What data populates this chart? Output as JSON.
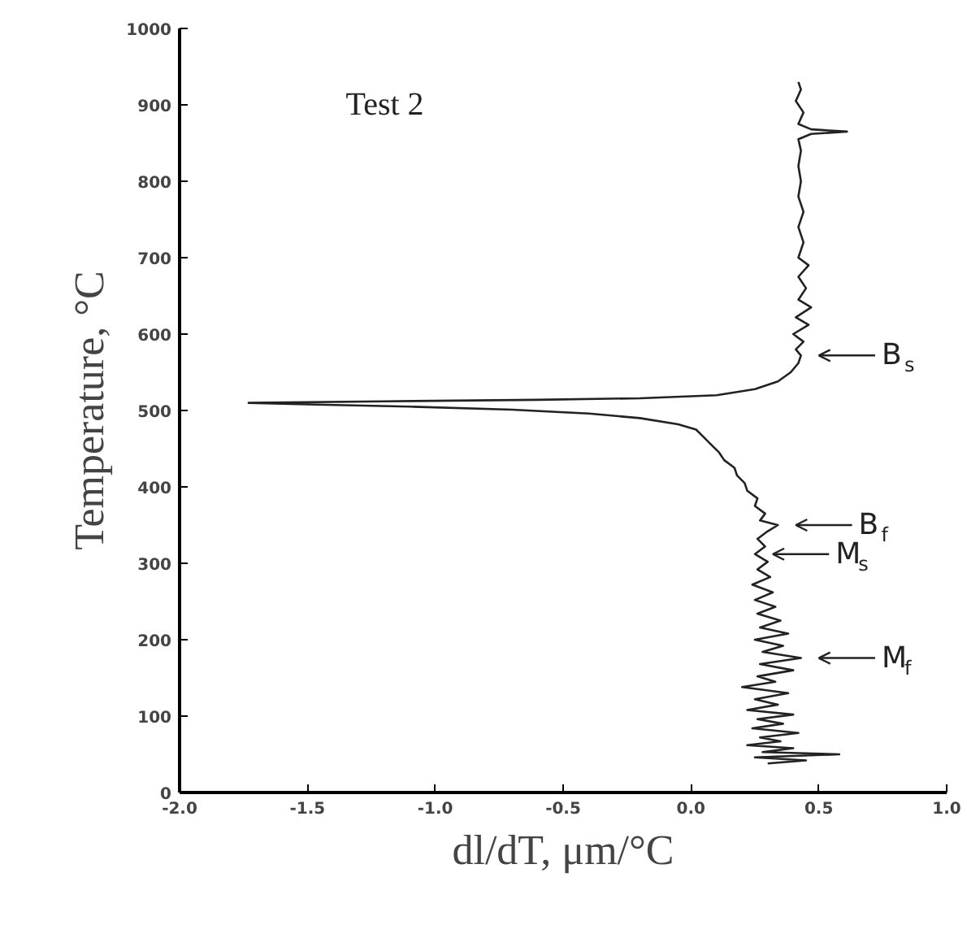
{
  "chart_data": {
    "type": "line",
    "title": "Test 2",
    "xlabel": "dl/dT, μm/°C",
    "ylabel": "Temperature, °C",
    "xlim": [
      -2.0,
      1.0
    ],
    "xticks": [
      {
        "value": -2.0,
        "label": "-2.0"
      },
      {
        "value": -1.5,
        "label": "-1.5"
      },
      {
        "value": -1.0,
        "label": "-1.0"
      },
      {
        "value": -0.5,
        "label": "-0.5"
      },
      {
        "value": 0.0,
        "label": "0.0"
      },
      {
        "value": 0.5,
        "label": "0.5"
      },
      {
        "value": 1.0,
        "label": "1.0"
      }
    ],
    "ylim": [
      0,
      1000
    ],
    "yticks": [
      0,
      100,
      200,
      300,
      400,
      500,
      600,
      700,
      800,
      900,
      1000
    ],
    "grid": false,
    "marker": "none",
    "line_style": "solid",
    "series": [
      {
        "color": "#222222",
        "x": [
          0.3,
          0.45,
          0.25,
          0.58,
          0.28,
          0.4,
          0.22,
          0.35,
          0.27,
          0.42,
          0.24,
          0.36,
          0.26,
          0.4,
          0.22,
          0.34,
          0.25,
          0.38,
          0.2,
          0.33,
          0.26,
          0.4,
          0.27,
          0.43,
          0.28,
          0.36,
          0.25,
          0.38,
          0.27,
          0.35,
          0.26,
          0.33,
          0.25,
          0.32,
          0.24,
          0.31,
          0.26,
          0.3,
          0.25,
          0.29,
          0.26,
          0.3,
          0.34,
          0.27,
          0.29,
          0.25,
          0.26,
          0.22,
          0.21,
          0.18,
          0.17,
          0.13,
          0.11,
          0.08,
          0.05,
          0.02,
          -0.05,
          -0.2,
          -0.4,
          -0.7,
          -1.1,
          -1.5,
          -1.73,
          -1.2,
          -0.6,
          -0.2,
          0.1,
          0.25,
          0.34,
          0.39,
          0.42,
          0.43,
          0.41,
          0.44,
          0.4,
          0.46,
          0.41,
          0.47,
          0.42,
          0.45,
          0.42,
          0.46,
          0.42,
          0.44,
          0.42,
          0.44,
          0.42,
          0.43,
          0.42,
          0.43,
          0.42,
          0.47,
          0.61,
          0.47,
          0.42,
          0.44,
          0.41,
          0.43,
          0.42
        ],
        "values": [
          38,
          42,
          46,
          50,
          53,
          58,
          62,
          67,
          72,
          78,
          84,
          90,
          96,
          102,
          108,
          115,
          122,
          130,
          138,
          145,
          152,
          160,
          168,
          176,
          184,
          192,
          200,
          208,
          216,
          225,
          234,
          243,
          252,
          262,
          272,
          282,
          292,
          302,
          312,
          322,
          332,
          342,
          350,
          356,
          365,
          375,
          385,
          395,
          405,
          415,
          425,
          435,
          445,
          455,
          465,
          475,
          482,
          490,
          496,
          501,
          505,
          508,
          510,
          512,
          514,
          516,
          520,
          528,
          538,
          550,
          562,
          572,
          580,
          590,
          600,
          612,
          622,
          635,
          645,
          660,
          675,
          690,
          700,
          720,
          740,
          760,
          780,
          800,
          820,
          840,
          855,
          862,
          865,
          868,
          875,
          890,
          905,
          920,
          930
        ]
      }
    ],
    "annotations": [
      {
        "text": "B$_{s}$",
        "x": 0.43,
        "y": 572
      },
      {
        "text": "B$_{f}$",
        "x": 0.34,
        "y": 350
      },
      {
        "text": "M$_{s}$",
        "x": 0.25,
        "y": 312
      },
      {
        "text": "M$_{f}$",
        "x": 0.43,
        "y": 176
      }
    ]
  }
}
